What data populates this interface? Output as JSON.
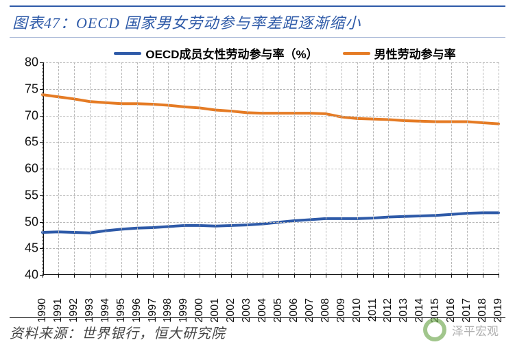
{
  "title": "图表47：OECD 国家男女劳动参与率差距逐渐缩小",
  "source": "资料来源：世界银行，恒大研究院",
  "watermark_text": "泽平宏观",
  "chart": {
    "type": "line",
    "background_color": "#ffffff",
    "grid_color": "#b7b7b7",
    "axis_color": "#111111",
    "title_color": "#2e5aa8",
    "title_fontsize": 22,
    "label_fontsize": 18,
    "tick_fontsize": 16,
    "legend_fontsize": 17,
    "line_width": 4,
    "ylim": [
      40,
      80
    ],
    "ytick_step": 5,
    "yticks": [
      40,
      45,
      50,
      55,
      60,
      65,
      70,
      75,
      80
    ],
    "categories": [
      "1990",
      "1991",
      "1992",
      "1993",
      "1994",
      "1995",
      "1996",
      "1997",
      "1998",
      "1999",
      "2000",
      "2001",
      "2002",
      "2003",
      "2004",
      "2005",
      "2006",
      "2007",
      "2008",
      "2009",
      "2010",
      "2011",
      "2012",
      "2013",
      "2014",
      "2015",
      "2016",
      "2017",
      "2018",
      "2019"
    ],
    "xlabel_rotation": -90,
    "grid_dash": "4,4",
    "series": [
      {
        "name": "OECD成员女性劳动参与率（%）",
        "color": "#2e5aa8",
        "values": [
          47.9,
          48.0,
          47.9,
          47.8,
          48.2,
          48.5,
          48.7,
          48.8,
          49.0,
          49.2,
          49.2,
          49.1,
          49.2,
          49.3,
          49.5,
          49.8,
          50.1,
          50.3,
          50.5,
          50.5,
          50.5,
          50.6,
          50.8,
          50.9,
          51.0,
          51.1,
          51.3,
          51.5,
          51.6,
          51.6
        ]
      },
      {
        "name": "男性劳动参与率",
        "color": "#e57b24",
        "values": [
          73.9,
          73.5,
          73.1,
          72.6,
          72.4,
          72.2,
          72.2,
          72.1,
          71.9,
          71.6,
          71.4,
          71.0,
          70.8,
          70.5,
          70.4,
          70.4,
          70.4,
          70.4,
          70.3,
          69.7,
          69.4,
          69.3,
          69.2,
          69.0,
          68.9,
          68.8,
          68.8,
          68.8,
          68.6,
          68.4
        ]
      }
    ]
  }
}
